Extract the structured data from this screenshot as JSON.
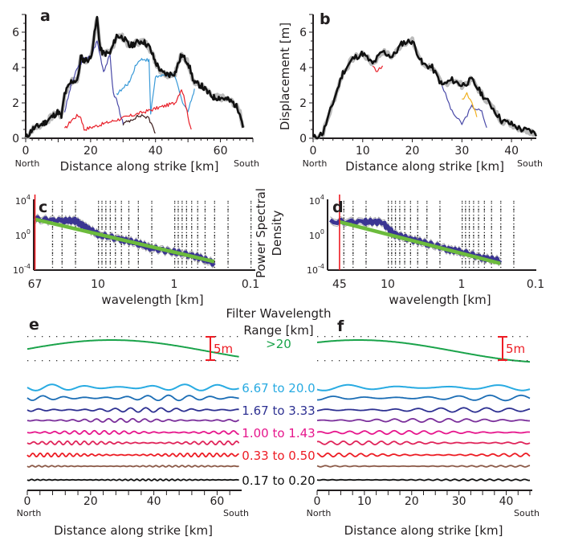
{
  "chart_data": [
    {
      "panel": "a",
      "type": "line",
      "xlabel": "Distance along strike [km]",
      "ylabel": "",
      "x_end_labels": [
        "North",
        "South"
      ],
      "xticks": [
        0,
        20,
        40,
        60
      ],
      "yticks": [
        0,
        2,
        4,
        6
      ],
      "xlim": [
        0,
        70
      ],
      "ylim": [
        0,
        7
      ],
      "series": [
        {
          "color": "#111111",
          "x": [
            0,
            2,
            4,
            6,
            8,
            10,
            11,
            12,
            14,
            16,
            17,
            18,
            20,
            22,
            23,
            24,
            26,
            28,
            30,
            32,
            34,
            36,
            38,
            40,
            42,
            44,
            46,
            48,
            50,
            52,
            54,
            56,
            58,
            60,
            62,
            64,
            66,
            67
          ],
          "y": [
            0,
            0.5,
            0.7,
            0.9,
            1.2,
            1.5,
            1.2,
            2.5,
            3.2,
            3.3,
            4.6,
            4.4,
            4.5,
            6.8,
            5.0,
            4.8,
            4.8,
            5.8,
            5.7,
            5.2,
            5.4,
            5.5,
            5.2,
            4.3,
            3.7,
            3.6,
            3.7,
            4.7,
            4.3,
            3.1,
            3.0,
            2.6,
            2.3,
            2.3,
            2.2,
            2.0,
            1.5,
            0.6
          ]
        },
        {
          "color": "#4a4aa8",
          "x": [
            12,
            14,
            16,
            18,
            20,
            22,
            24,
            26,
            27,
            28,
            30
          ],
          "y": [
            1.5,
            3.0,
            4.0,
            4.5,
            4.6,
            5.5,
            3.8,
            4.7,
            2.5,
            2.2,
            0.8
          ]
        },
        {
          "color": "#3a9ad8",
          "x": [
            28,
            30,
            32,
            34,
            36,
            38,
            38.5,
            40,
            42,
            44,
            46,
            48,
            50,
            52
          ],
          "y": [
            2.5,
            2.8,
            3.2,
            4.2,
            4.5,
            4.4,
            1.4,
            3.5,
            3.5,
            3.6,
            3.5,
            2.2,
            1.5,
            2.8
          ]
        },
        {
          "color": "#e8202a",
          "x": [
            12,
            14,
            16,
            17,
            18,
            46,
            48,
            49,
            50,
            51
          ],
          "y": [
            0.5,
            1.0,
            1.3,
            1.2,
            0.5,
            2.0,
            2.8,
            2.2,
            1.2,
            0.5
          ]
        },
        {
          "color": "#3a1a1a",
          "x": [
            30,
            32,
            34,
            36,
            38,
            40
          ],
          "y": [
            0.8,
            1.0,
            1.2,
            1.3,
            1.1,
            0.3
          ]
        }
      ]
    },
    {
      "panel": "b",
      "type": "line",
      "xlabel": "Distance along strike [km]",
      "ylabel": "Displacement [m]",
      "x_end_labels": [
        "North",
        "South"
      ],
      "xticks": [
        0,
        10,
        20,
        30,
        40
      ],
      "yticks": [
        0,
        2,
        4,
        6
      ],
      "xlim": [
        0,
        45
      ],
      "ylim": [
        0,
        7
      ],
      "series": [
        {
          "color": "#111111",
          "x": [
            0,
            2,
            4,
            6,
            8,
            10,
            12,
            14,
            16,
            18,
            20,
            22,
            24,
            26,
            28,
            30,
            32,
            34,
            36,
            38,
            40,
            42,
            44,
            45
          ],
          "y": [
            0,
            0.3,
            2.0,
            3.7,
            4.5,
            4.8,
            4.2,
            4.9,
            4.6,
            5.4,
            5.5,
            4.2,
            4.0,
            3.0,
            3.3,
            3.0,
            3.3,
            2.5,
            1.8,
            1.0,
            0.8,
            0.5,
            0.4,
            0.2
          ]
        },
        {
          "color": "#4a4aa8",
          "x": [
            26,
            28,
            30,
            32,
            34,
            35
          ],
          "y": [
            3.0,
            1.5,
            0.8,
            1.8,
            1.5,
            0.6
          ]
        },
        {
          "color": "#f0b020",
          "x": [
            30,
            31,
            32,
            33
          ],
          "y": [
            2.2,
            2.5,
            2.0,
            1.2
          ]
        },
        {
          "color": "#e8202a",
          "x": [
            12,
            13,
            14
          ],
          "y": [
            4.0,
            3.8,
            4.1
          ]
        }
      ]
    },
    {
      "panel": "c",
      "type": "line",
      "xscale": "log",
      "yscale": "log",
      "xlabel": "wavelength [km]",
      "ylabel": "",
      "xticks": [
        "67",
        "10",
        "1",
        "0.1"
      ],
      "yticks": [
        "10^4",
        "10^0",
        "10^-4"
      ],
      "cutoff_wavelength": 67,
      "spectrum": {
        "x": [
          67,
          30,
          20,
          15,
          10,
          5,
          3,
          2,
          1,
          0.5,
          0.3
        ],
        "y": [
          60,
          40,
          40,
          10,
          1,
          0.3,
          0.1,
          0.03,
          0.01,
          0.003,
          0.0005
        ],
        "color": "#3b3593"
      },
      "fit": {
        "x": [
          67,
          0.3
        ],
        "y": [
          60,
          0.0008
        ],
        "color": "#6cbb3c"
      }
    },
    {
      "panel": "d",
      "type": "line",
      "xscale": "log",
      "yscale": "log",
      "xlabel": "wavelength [km]",
      "ylabel": "Power Spectral Density",
      "xticks": [
        "45",
        "10",
        "1",
        "0.1"
      ],
      "yticks": [
        "10^4",
        "10^0",
        "10^-4"
      ],
      "cutoff_wavelength": 45,
      "spectrum": {
        "x": [
          60,
          20,
          12,
          8,
          5,
          3,
          1.5,
          1,
          0.5,
          0.3
        ],
        "y": [
          30,
          30,
          30,
          1,
          0.3,
          0.1,
          0.02,
          0.01,
          0.002,
          0.001
        ],
        "color": "#3b3593"
      },
      "fit": {
        "x": [
          45,
          0.3
        ],
        "y": [
          30,
          0.0005
        ],
        "color": "#6cbb3c"
      }
    }
  ],
  "filter": {
    "title_line1": "Filter Wavelength",
    "title_line2": "Range [km]",
    "scale_bar": "5m",
    "bands": [
      {
        "label": ">20",
        "color": "#1aa34a"
      },
      {
        "label": "6.67 to 20.0",
        "color": "#29abe2"
      },
      {
        "label": "",
        "color": "#1b6db5"
      },
      {
        "label": "1.67 to 3.33",
        "color": "#2e3192"
      },
      {
        "label": "",
        "color": "#7b2f9b"
      },
      {
        "label": "1.00 to 1.43",
        "color": "#e6168c"
      },
      {
        "label": "",
        "color": "#e0245a"
      },
      {
        "label": "0.33 to 0.50",
        "color": "#ed1c24"
      },
      {
        "label": "",
        "color": "#8c5a48"
      },
      {
        "label": "0.17 to 0.20",
        "color": "#111111"
      }
    ],
    "panel_e": {
      "xticks": [
        0,
        20,
        40,
        60
      ],
      "xlim": [
        0,
        67
      ],
      "xlabel": "Distance along strike [km]",
      "ends": [
        "North",
        "South"
      ]
    },
    "panel_f": {
      "xticks": [
        0,
        10,
        20,
        30,
        40
      ],
      "xlim": [
        0,
        45
      ],
      "xlabel": "Distance along strike [km]",
      "ends": [
        "North",
        "South"
      ]
    }
  },
  "labels": {
    "a": "a",
    "b": "b",
    "c": "c",
    "d": "d",
    "e": "e",
    "f": "f"
  },
  "psd_label_1": "Power Spectral",
  "psd_label_2": "Density",
  "cutoff_color": "#ed1c24"
}
